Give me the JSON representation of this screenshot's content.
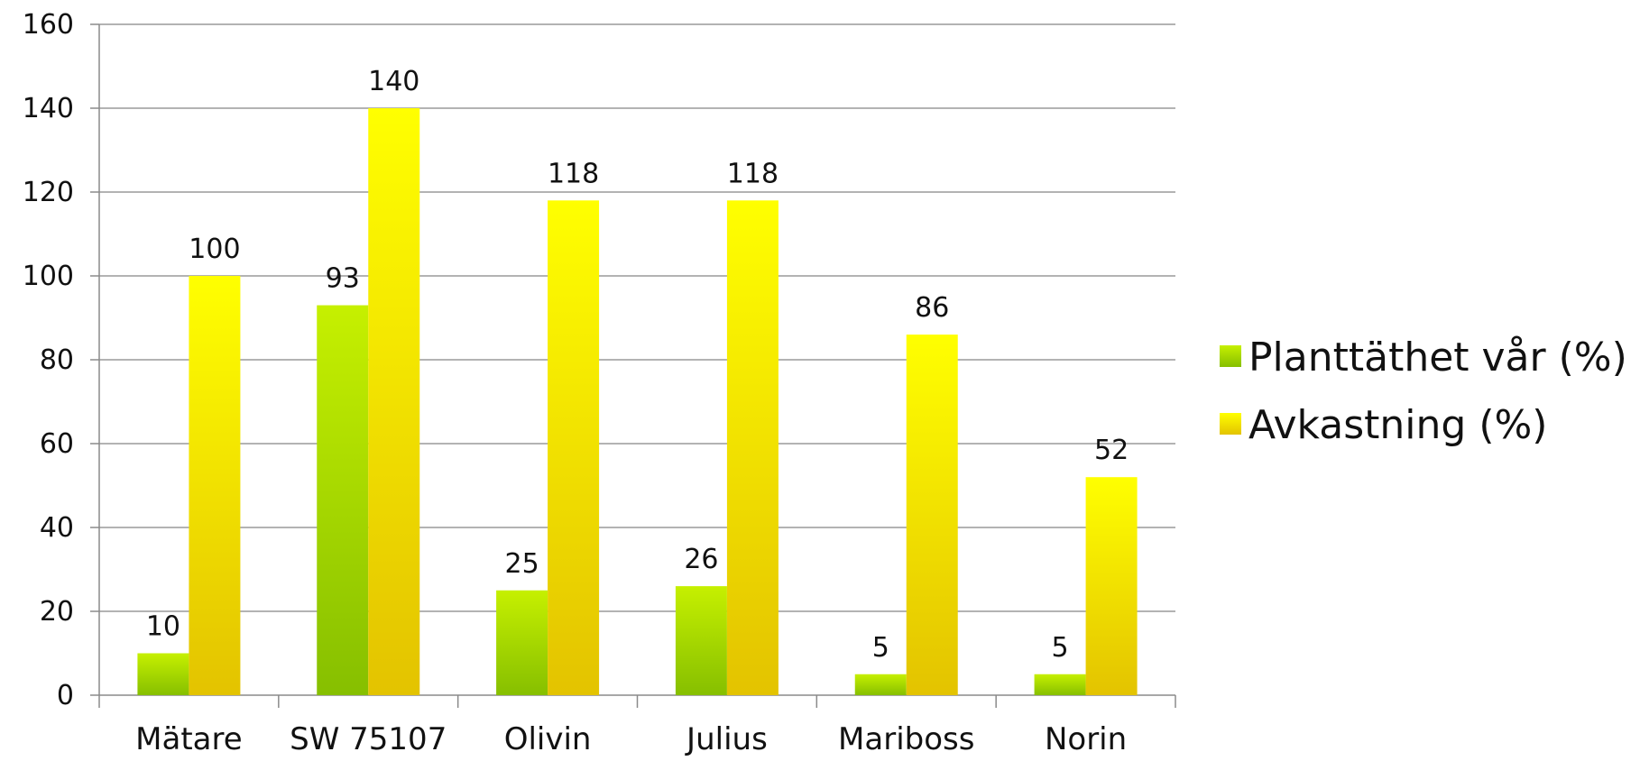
{
  "chart_data": {
    "type": "bar",
    "title": "",
    "xlabel": "",
    "ylabel": "",
    "ylim": [
      0,
      160
    ],
    "yticks": [
      0,
      20,
      40,
      60,
      80,
      100,
      120,
      140,
      160
    ],
    "grid": true,
    "legend_position": "right",
    "categories": [
      "Mätare",
      "SW 75107",
      "Olivin",
      "Julius",
      "Mariboss",
      "Norin"
    ],
    "series": [
      {
        "name": "Planttäthet vår (%)",
        "color": "#8fcc00",
        "values": [
          10,
          93,
          25,
          26,
          5,
          5
        ]
      },
      {
        "name": "Avkastning (%)",
        "color": "#f2d600",
        "values": [
          100,
          140,
          118,
          118,
          86,
          52
        ]
      }
    ]
  }
}
